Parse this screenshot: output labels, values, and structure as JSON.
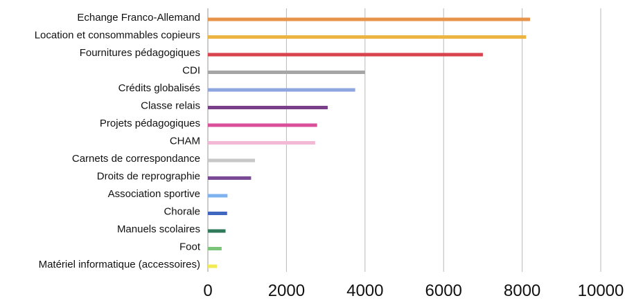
{
  "chart_data": {
    "type": "bar",
    "orientation": "horizontal",
    "categories": [
      "Echange Franco-Allemand",
      "Location et consommables copieurs",
      "Fournitures pédagogiques",
      "CDI",
      "Crédits globalisés",
      "Classe relais",
      "Projets pédagogiques",
      "CHAM",
      "Carnets de correspondance",
      "Droits de reprographie",
      "Association sportive",
      "Chorale",
      "Manuels scolaires",
      "Foot",
      "Matériel informatique (accessoires)"
    ],
    "values": [
      8200,
      8100,
      7000,
      4000,
      3750,
      3050,
      2780,
      2730,
      1200,
      1100,
      500,
      490,
      450,
      350,
      230
    ],
    "colors": [
      "#e8934a",
      "#ecb443",
      "#d9434d",
      "#a6a6a6",
      "#8ea6e0",
      "#7a3f89",
      "#d94f9a",
      "#f2b8d6",
      "#c7c7c7",
      "#7a4a94",
      "#7fb3f0",
      "#3f67c0",
      "#2f7a5a",
      "#7cc47a",
      "#f2ea52"
    ],
    "xlim": [
      0,
      10000
    ],
    "xticks": [
      0,
      2000,
      4000,
      6000,
      8000,
      10000
    ],
    "xtick_labels": [
      "0",
      "2000",
      "4000",
      "6000",
      "8000",
      "10000"
    ],
    "grid": "vertical",
    "legend": "none",
    "title": "",
    "xlabel": "",
    "ylabel": ""
  }
}
